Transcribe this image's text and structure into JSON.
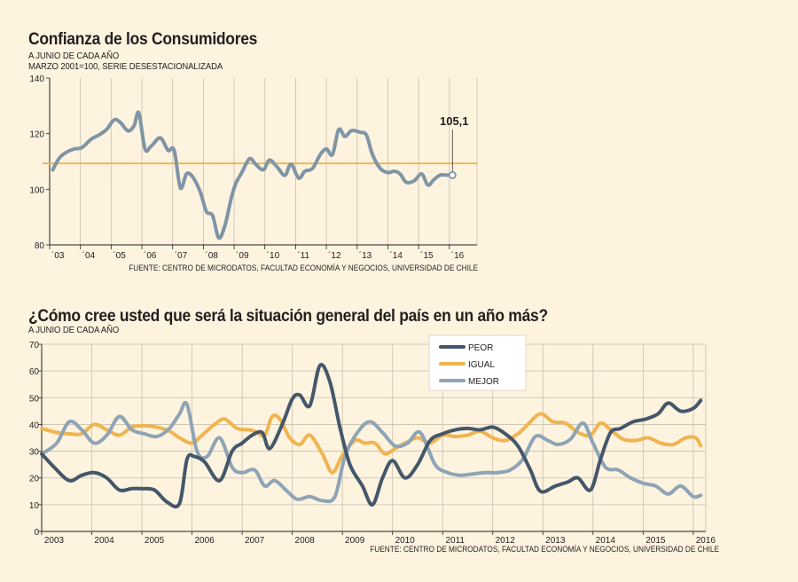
{
  "colors": {
    "background": "#fdf3de",
    "grid": "#cbbfae",
    "axis": "#231f20",
    "confianza_line": "#7f95a6",
    "reference_line": "#f0b450",
    "peor": "#44576a",
    "igual": "#f0b450",
    "mejor": "#8ea4b6"
  },
  "chart_data": [
    {
      "type": "line",
      "title": "Confianza de los Consumidores",
      "subtitle1": "A JUNIO DE CADA AÑO",
      "subtitle2": "MARZO 2001=100, SERIE DESESTACIONALIZADA",
      "source": "FUENTE: CENTRO DE MICRODATOS, FACULTAD ECONOMÍA Y NEGOCIOS, UNIVERSIDAD DE CHILE",
      "ylim": [
        80,
        140
      ],
      "yticks": [
        80,
        100,
        120,
        140
      ],
      "xlim": [
        2003.0,
        2016.9
      ],
      "xtick_labels": [
        "´03",
        "´04",
        "´05",
        "´06",
        "´07",
        "´08",
        "´09",
        "´10",
        "´11",
        "´12",
        "´13",
        "´14",
        "´15",
        "´16"
      ],
      "reference_value": 109.3,
      "last_value_label": "105,1",
      "last_value": 105.1,
      "x": [
        2003.1,
        2003.3,
        2003.5,
        2003.8,
        2004.05,
        2004.35,
        2004.6,
        2004.85,
        2005.1,
        2005.3,
        2005.55,
        2005.75,
        2005.9,
        2006.1,
        2006.3,
        2006.6,
        2006.85,
        2007.05,
        2007.25,
        2007.45,
        2007.65,
        2007.9,
        2008.1,
        2008.3,
        2008.5,
        2008.7,
        2008.9,
        2009.05,
        2009.25,
        2009.5,
        2009.7,
        2009.95,
        2010.15,
        2010.4,
        2010.65,
        2010.85,
        2011.1,
        2011.3,
        2011.55,
        2011.8,
        2012.0,
        2012.2,
        2012.4,
        2012.6,
        2012.8,
        2012.95,
        2013.1,
        2013.3,
        2013.5,
        2013.75,
        2014.0,
        2014.2,
        2014.4,
        2014.6,
        2014.85,
        2015.1,
        2015.3,
        2015.5,
        2015.7,
        2015.9,
        2016.1
      ],
      "values": [
        107,
        111,
        113,
        114.5,
        115,
        118,
        119.5,
        121.5,
        125,
        124,
        121,
        123,
        127.5,
        114.5,
        115.5,
        118.5,
        114,
        114,
        100.5,
        105.5,
        104.5,
        99,
        92,
        90.5,
        82.5,
        87,
        96.5,
        102,
        106,
        111,
        109,
        107,
        110.5,
        108,
        105,
        109,
        104,
        106.5,
        107.5,
        112.5,
        114.5,
        112.5,
        121.5,
        119,
        121,
        121,
        120.5,
        119.5,
        112.5,
        107.5,
        106,
        106.5,
        105.5,
        102.5,
        103,
        105.5,
        101.5,
        103.5,
        105.1,
        105.1,
        105.1
      ]
    },
    {
      "type": "line",
      "title": "¿Cómo cree usted que será la situación general del país en un año más?",
      "subtitle1": "A JUNIO DE CADA AÑO",
      "source": "FUENTE: CENTRO DE MICRODATOS, FACULTAD ECONOMÍA Y NEGOCIOS, UNIVERSIDAD DE CHILE",
      "ylim": [
        0,
        70
      ],
      "yticks": [
        0,
        10,
        20,
        30,
        40,
        50,
        60,
        70
      ],
      "xlim": [
        2003.0,
        2016.25
      ],
      "xtick_labels": [
        "2003",
        "2004",
        "2005",
        "2006",
        "2007",
        "2008",
        "2009",
        "2010",
        "2011",
        "2012",
        "2013",
        "2014",
        "2015",
        "2016"
      ],
      "legend": [
        "PEOR",
        "IGUAL",
        "MEJOR"
      ],
      "series": [
        {
          "name": "PEOR",
          "x": [
            2003.0,
            2003.25,
            2003.55,
            2003.8,
            2004.05,
            2004.3,
            2004.55,
            2004.8,
            2005.0,
            2005.25,
            2005.5,
            2005.75,
            2005.9,
            2006.05,
            2006.25,
            2006.55,
            2006.8,
            2007.0,
            2007.2,
            2007.4,
            2007.55,
            2007.8,
            2008.0,
            2008.15,
            2008.35,
            2008.55,
            2008.75,
            2008.95,
            2009.15,
            2009.4,
            2009.6,
            2009.8,
            2010.0,
            2010.25,
            2010.5,
            2010.75,
            2011.0,
            2011.25,
            2011.5,
            2011.75,
            2012.0,
            2012.25,
            2012.5,
            2012.75,
            2012.95,
            2013.25,
            2013.5,
            2013.7,
            2013.95,
            2014.15,
            2014.35,
            2014.55,
            2014.8,
            2015.05,
            2015.3,
            2015.5,
            2015.75,
            2016.0,
            2016.15
          ],
          "values": [
            29,
            24,
            19,
            21,
            22,
            20,
            15.5,
            16,
            16,
            15.5,
            11,
            10.5,
            27,
            28,
            26,
            19,
            30,
            33,
            36,
            37,
            31,
            40,
            49.5,
            51,
            47,
            62,
            56,
            39,
            25,
            17,
            10,
            20,
            26.5,
            20,
            25,
            34,
            36.5,
            38,
            38.5,
            38,
            39,
            36.5,
            32,
            23,
            15,
            17,
            18.5,
            20,
            15.5,
            27,
            37,
            38.5,
            41,
            42,
            44,
            48,
            45,
            46,
            49
          ]
        },
        {
          "name": "IGUAL",
          "x": [
            2003.0,
            2003.3,
            2003.55,
            2003.8,
            2004.05,
            2004.3,
            2004.55,
            2004.8,
            2005.05,
            2005.3,
            2005.55,
            2005.75,
            2006.0,
            2006.2,
            2006.45,
            2006.65,
            2006.9,
            2007.15,
            2007.3,
            2007.45,
            2007.6,
            2007.75,
            2007.95,
            2008.15,
            2008.35,
            2008.6,
            2008.8,
            2009.0,
            2009.25,
            2009.45,
            2009.65,
            2009.85,
            2010.05,
            2010.25,
            2010.5,
            2010.75,
            2011.0,
            2011.25,
            2011.5,
            2011.75,
            2012.0,
            2012.25,
            2012.5,
            2012.7,
            2012.95,
            2013.2,
            2013.45,
            2013.7,
            2013.95,
            2014.15,
            2014.35,
            2014.6,
            2014.85,
            2015.1,
            2015.35,
            2015.6,
            2015.85,
            2016.05,
            2016.15
          ],
          "values": [
            38.5,
            37,
            36.5,
            36.5,
            40,
            38,
            36,
            39,
            39.5,
            39,
            37.5,
            35,
            33,
            36,
            40,
            42,
            38.5,
            38,
            37,
            36,
            43,
            42,
            35,
            32.5,
            36,
            29,
            22,
            28.5,
            34,
            33,
            33,
            29,
            31,
            33,
            35,
            33,
            36,
            35.5,
            36,
            37.5,
            35,
            34,
            36.5,
            40,
            44,
            41,
            40.5,
            37,
            36,
            40.5,
            38,
            34.5,
            34,
            35,
            33,
            32.5,
            35,
            35,
            32
          ]
        },
        {
          "name": "MEJOR",
          "x": [
            2003.0,
            2003.3,
            2003.55,
            2003.8,
            2004.05,
            2004.3,
            2004.55,
            2004.8,
            2005.05,
            2005.3,
            2005.55,
            2005.75,
            2005.9,
            2006.1,
            2006.3,
            2006.55,
            2006.8,
            2007.0,
            2007.25,
            2007.45,
            2007.65,
            2007.9,
            2008.1,
            2008.35,
            2008.6,
            2008.85,
            2009.05,
            2009.3,
            2009.55,
            2009.8,
            2010.05,
            2010.3,
            2010.55,
            2010.85,
            2011.1,
            2011.35,
            2011.6,
            2011.85,
            2012.1,
            2012.35,
            2012.6,
            2012.85,
            2013.1,
            2013.3,
            2013.55,
            2013.8,
            2014.0,
            2014.25,
            2014.5,
            2014.75,
            2015.0,
            2015.25,
            2015.5,
            2015.75,
            2016.0,
            2016.15
          ],
          "values": [
            29,
            33,
            41,
            38,
            33,
            36,
            43,
            38,
            36.5,
            35.5,
            38.5,
            44,
            47.5,
            30,
            28,
            35,
            24,
            22,
            23,
            17,
            19,
            15,
            12,
            13,
            11.5,
            13,
            28,
            37,
            41,
            37,
            32,
            33,
            37,
            25,
            22,
            21,
            21.5,
            22,
            22,
            23,
            27,
            35.5,
            34,
            32.5,
            34.5,
            40.5,
            33,
            24,
            23,
            20,
            18,
            17,
            14,
            17,
            13,
            13.5
          ]
        }
      ]
    }
  ]
}
